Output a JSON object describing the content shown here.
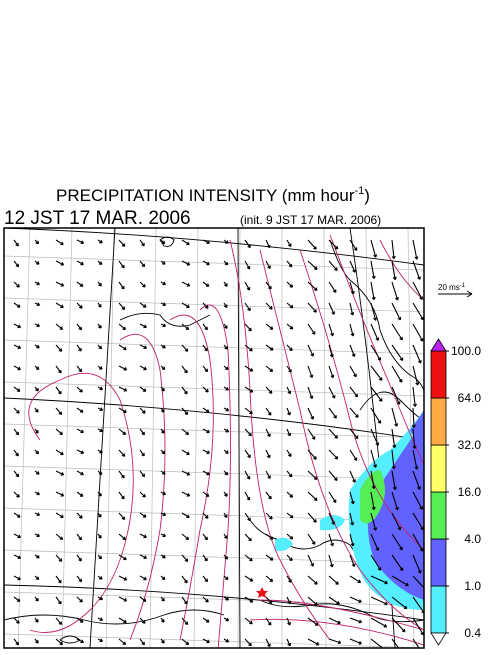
{
  "title": {
    "main": "PRECIPITATION INTENSITY (mm hour",
    "exponent": "-1",
    "close": ")"
  },
  "valid_time": "12 JST 17 MAR. 2006",
  "init_time": "(init. 9 JST 17 MAR. 2006)",
  "wind_scale": {
    "label": "20 ms",
    "exponent": "-1"
  },
  "colorbar": {
    "levels": [
      0.4,
      {
        "value": 1,
        "label": "1.0"
      },
      {
        "value": 4,
        "label": "4.0"
      },
      {
        "value": 16,
        "label": "16.0"
      },
      {
        "value": 32,
        "label": "32.0"
      },
      {
        "value": 64,
        "label": "64.0"
      },
      {
        "value": 100,
        "label": "100.0"
      }
    ],
    "colors": [
      "#55eeff",
      "#6262ff",
      "#55ee55",
      "#ffff66",
      "#ffaa44",
      "#ee1111"
    ],
    "below_color": "#ffffff",
    "above_color": "#bb22ee"
  }
}
